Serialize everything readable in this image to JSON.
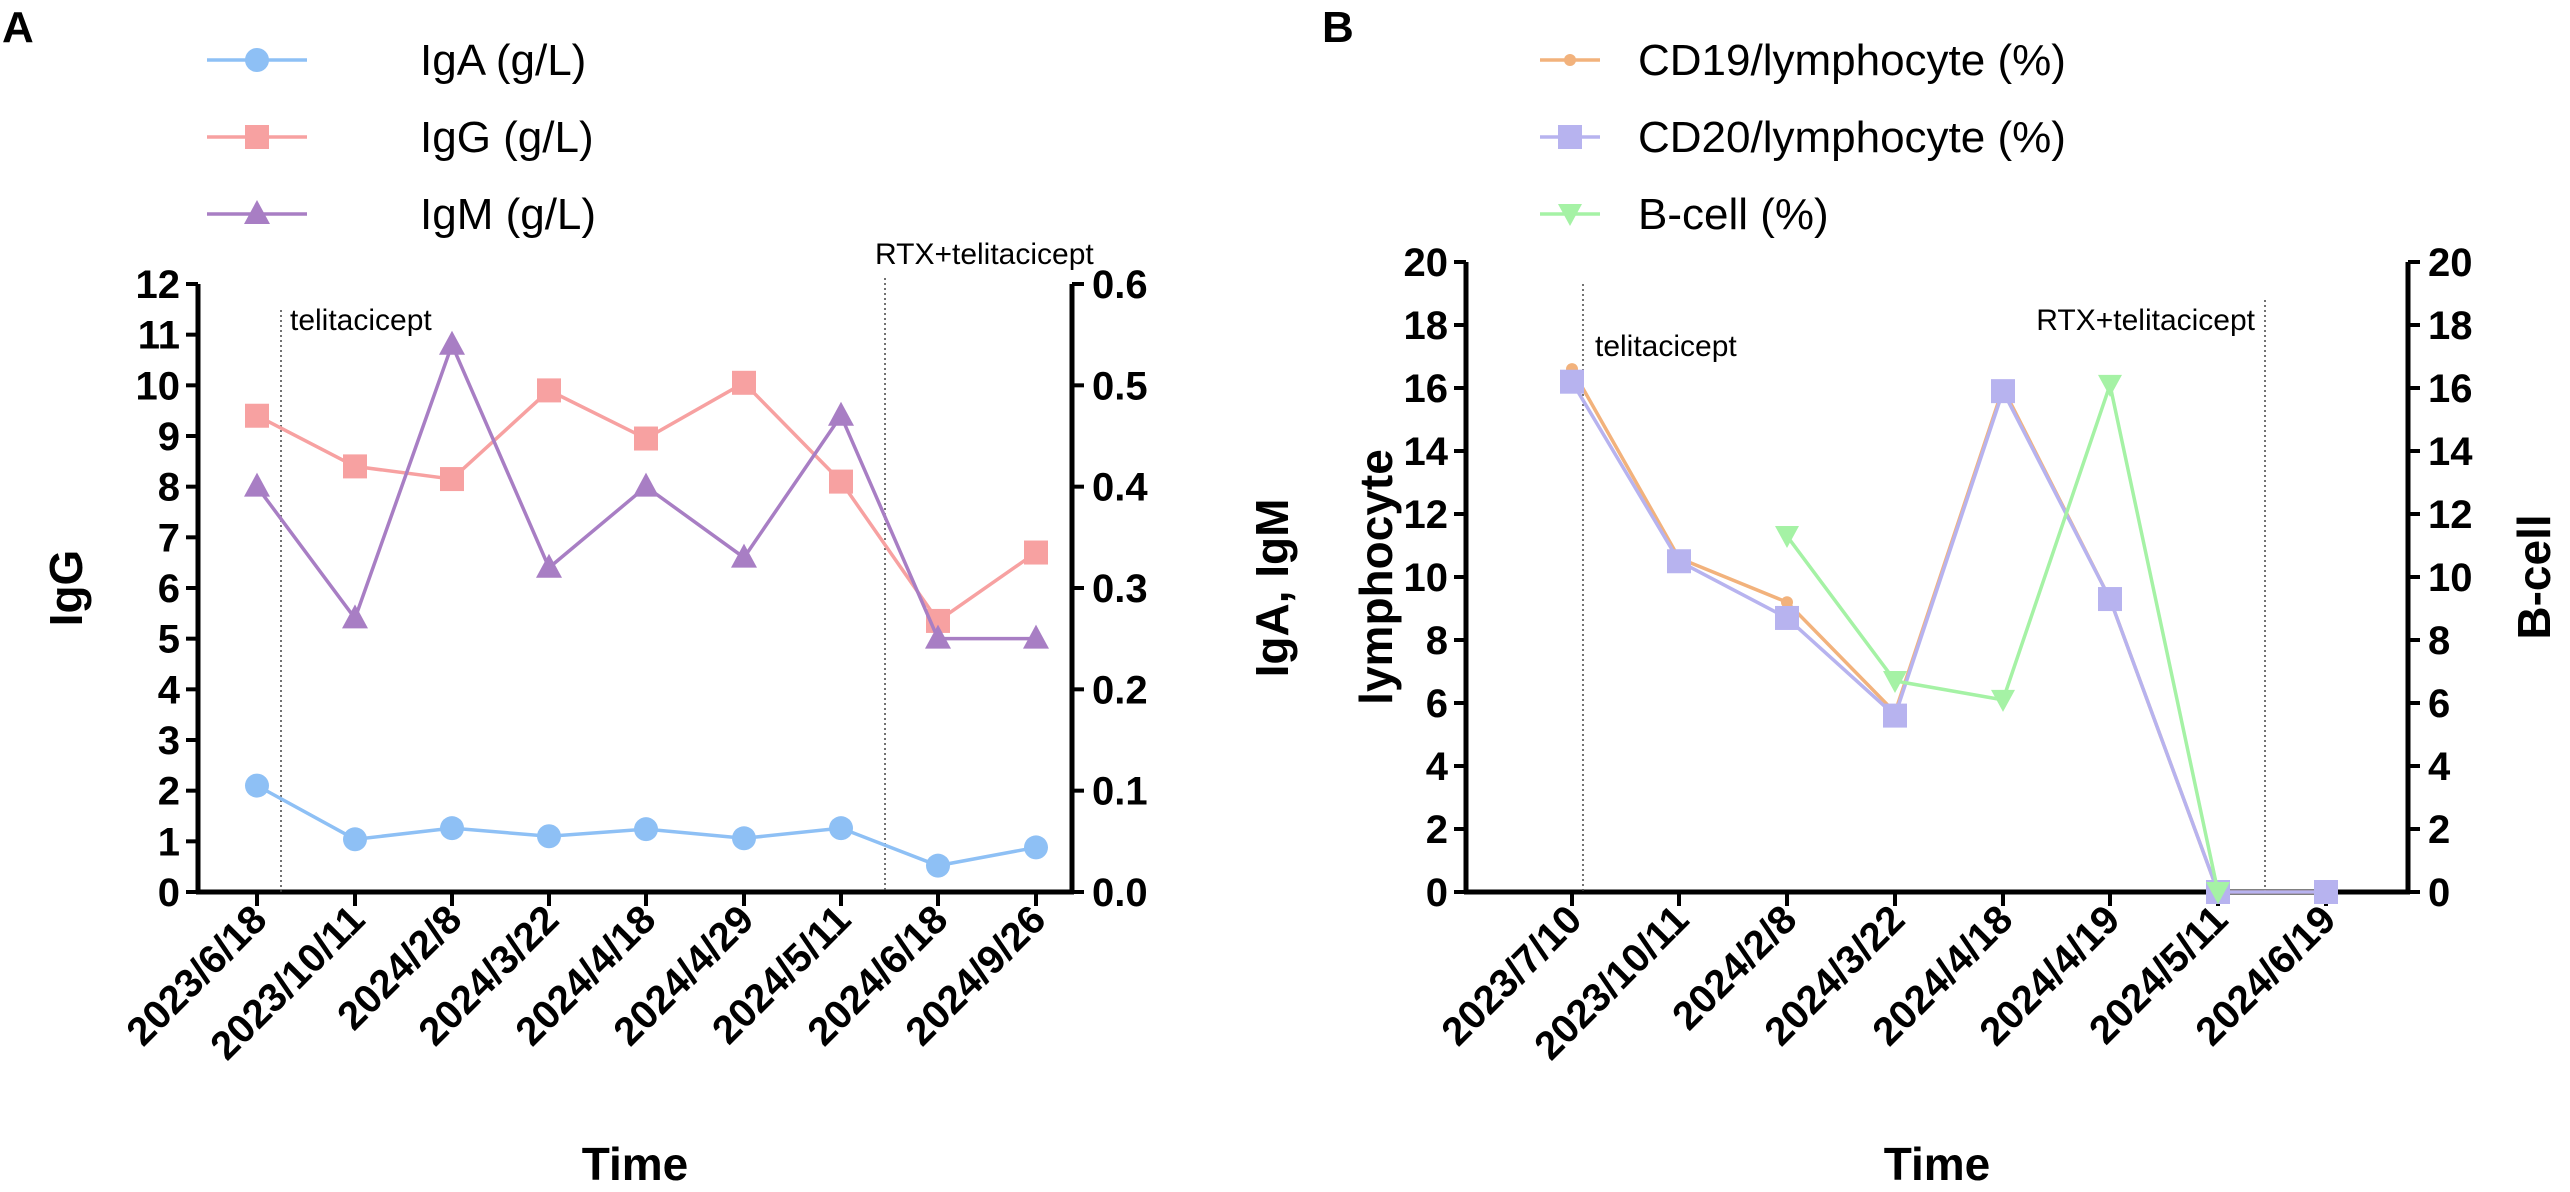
{
  "chart_data": [
    {
      "panel": "A",
      "type": "line",
      "categories": [
        "2023/6/18",
        "2023/10/11",
        "2024/2/8",
        "2024/3/22",
        "2024/4/18",
        "2024/4/29",
        "2024/5/11",
        "2024/6/18",
        "2024/9/26"
      ],
      "series": [
        {
          "name": "IgA (g/L)",
          "axis": "right",
          "color": "#8ec0f5",
          "marker": "circle",
          "values": [
            0.105,
            0.052,
            0.063,
            0.055,
            0.062,
            0.053,
            0.063,
            0.026,
            0.044
          ]
        },
        {
          "name": "IgG (g/L)",
          "axis": "left",
          "color": "#f7a1a1",
          "marker": "square",
          "values": [
            9.4,
            8.4,
            8.15,
            9.9,
            8.95,
            10.05,
            8.1,
            5.35,
            6.7
          ]
        },
        {
          "name": "IgM (g/L)",
          "axis": "right",
          "color": "#a87ec4",
          "marker": "triangle",
          "values": [
            0.4,
            0.27,
            0.54,
            0.32,
            0.4,
            0.33,
            0.47,
            0.25,
            0.25
          ]
        }
      ],
      "xlabel": "Time",
      "ylabel_left": "IgG",
      "ylabel_right": "IgA, IgM",
      "ylim_left": [
        0,
        12
      ],
      "ylim_right": [
        0,
        0.6
      ],
      "yticks_left": [
        "0",
        "1",
        "2",
        "3",
        "4",
        "5",
        "6",
        "7",
        "8",
        "9",
        "10",
        "11",
        "12"
      ],
      "yticks_right": [
        "0.0",
        "0.1",
        "0.2",
        "0.3",
        "0.4",
        "0.5",
        "0.6"
      ],
      "annotations": [
        {
          "text": "telitacicept",
          "after_index": 0
        },
        {
          "text": "RTX+telitacicept",
          "after_index": 6
        }
      ],
      "legend_position": "top-left",
      "grid": false
    },
    {
      "panel": "B",
      "type": "line",
      "categories": [
        "2023/7/10",
        "2023/10/11",
        "2024/2/8",
        "2024/3/22",
        "2024/4/18",
        "2024/4/19",
        "2024/5/11",
        "2024/6/19"
      ],
      "series": [
        {
          "name": "CD19/lymphocyte (%)",
          "axis": "left",
          "color": "#f2b27c",
          "marker": "small-circle",
          "values": [
            16.6,
            10.6,
            9.2,
            5.7,
            16.0,
            9.3,
            0,
            0
          ]
        },
        {
          "name": "CD20/lymphocyte (%)",
          "axis": "left",
          "color": "#b7b3ef",
          "marker": "square",
          "values": [
            16.2,
            10.5,
            8.7,
            5.6,
            15.9,
            9.3,
            0,
            0
          ]
        },
        {
          "name": "B-cell (%)",
          "axis": "right",
          "color": "#a5f2a5",
          "marker": "down-triangle",
          "values": [
            null,
            null,
            11.3,
            6.7,
            6.1,
            16.1,
            0,
            null
          ]
        }
      ],
      "xlabel": "Time",
      "ylabel_left": "lymphocyte",
      "ylabel_right": "B-cell",
      "ylim_left": [
        0,
        20
      ],
      "ylim_right": [
        0,
        20
      ],
      "yticks_left": [
        "0",
        "2",
        "4",
        "6",
        "8",
        "10",
        "12",
        "14",
        "16",
        "18",
        "20"
      ],
      "yticks_right": [
        "0",
        "2",
        "4",
        "6",
        "8",
        "10",
        "12",
        "14",
        "16",
        "18",
        "20"
      ],
      "annotations": [
        {
          "text": "telitacicept",
          "after_index": 0
        },
        {
          "text": "RTX+telitacicept",
          "after_index": 6
        }
      ],
      "legend_position": "top-left",
      "grid": false
    }
  ]
}
